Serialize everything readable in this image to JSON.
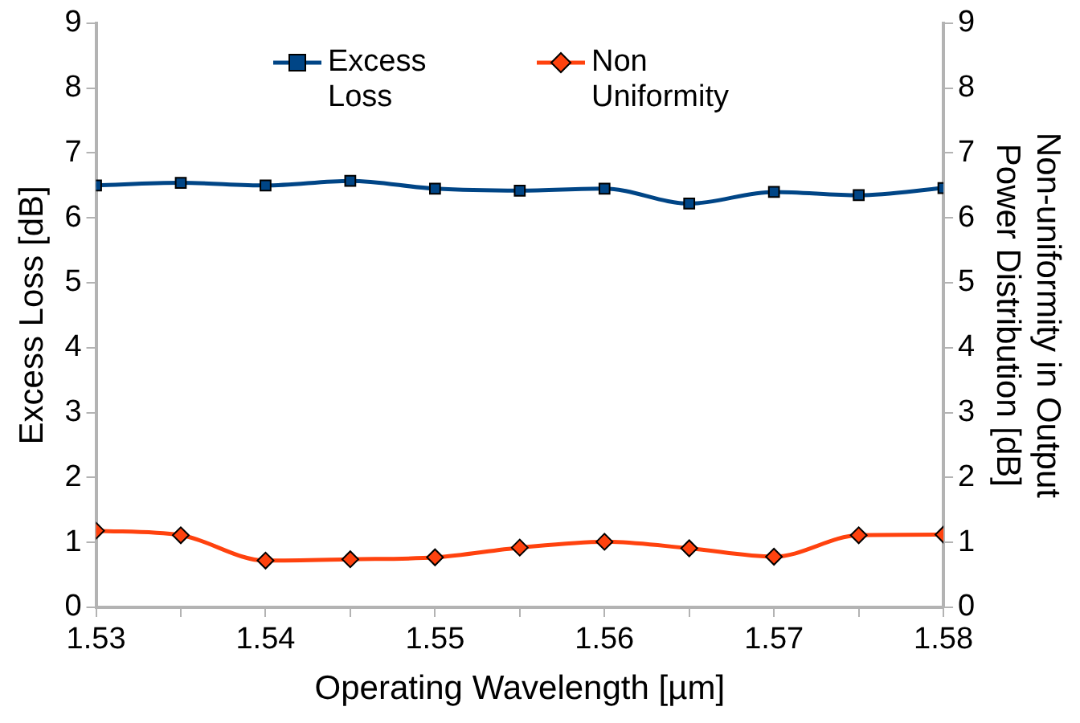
{
  "chart_data": {
    "type": "line",
    "xlabel": "Operating Wavelength [µm]",
    "ylabel": "Excess Loss [dB]",
    "y2label": "Non-uniformity in Output Power Distribution [dB]",
    "x": [
      1.53,
      1.535,
      1.54,
      1.545,
      1.55,
      1.555,
      1.56,
      1.565,
      1.57,
      1.575,
      1.58
    ],
    "series": [
      {
        "name": "Excess Loss",
        "color": "#004586",
        "marker": "square",
        "values": [
          6.5,
          6.54,
          6.5,
          6.57,
          6.45,
          6.42,
          6.45,
          6.22,
          6.4,
          6.35,
          6.46
        ]
      },
      {
        "name": "Non Uniformity",
        "color": "#ff420e",
        "marker": "diamond",
        "axis": "y2",
        "values": [
          1.18,
          1.11,
          0.72,
          0.74,
          0.77,
          0.92,
          1.01,
          0.91,
          0.78,
          1.11,
          1.12
        ]
      }
    ],
    "xlim": [
      1.53,
      1.58
    ],
    "xticks": [
      {
        "value": 1.53,
        "label": "1.53"
      },
      {
        "value": 1.535,
        "label": null
      },
      {
        "value": 1.54,
        "label": "1.54"
      },
      {
        "value": 1.545,
        "label": null
      },
      {
        "value": 1.55,
        "label": "1.55"
      },
      {
        "value": 1.555,
        "label": null
      },
      {
        "value": 1.56,
        "label": "1.56"
      },
      {
        "value": 1.565,
        "label": null
      },
      {
        "value": 1.57,
        "label": "1.57"
      },
      {
        "value": 1.575,
        "label": null
      },
      {
        "value": 1.58,
        "label": "1.58"
      }
    ],
    "ylim": [
      0,
      9
    ],
    "yticks": [
      0,
      1,
      2,
      3,
      4,
      5,
      6,
      7,
      8,
      9
    ],
    "y2lim": [
      0,
      9
    ],
    "y2ticks": [
      0,
      1,
      2,
      3,
      4,
      5,
      6,
      7,
      8,
      9
    ],
    "grid": false,
    "legend": "top"
  }
}
